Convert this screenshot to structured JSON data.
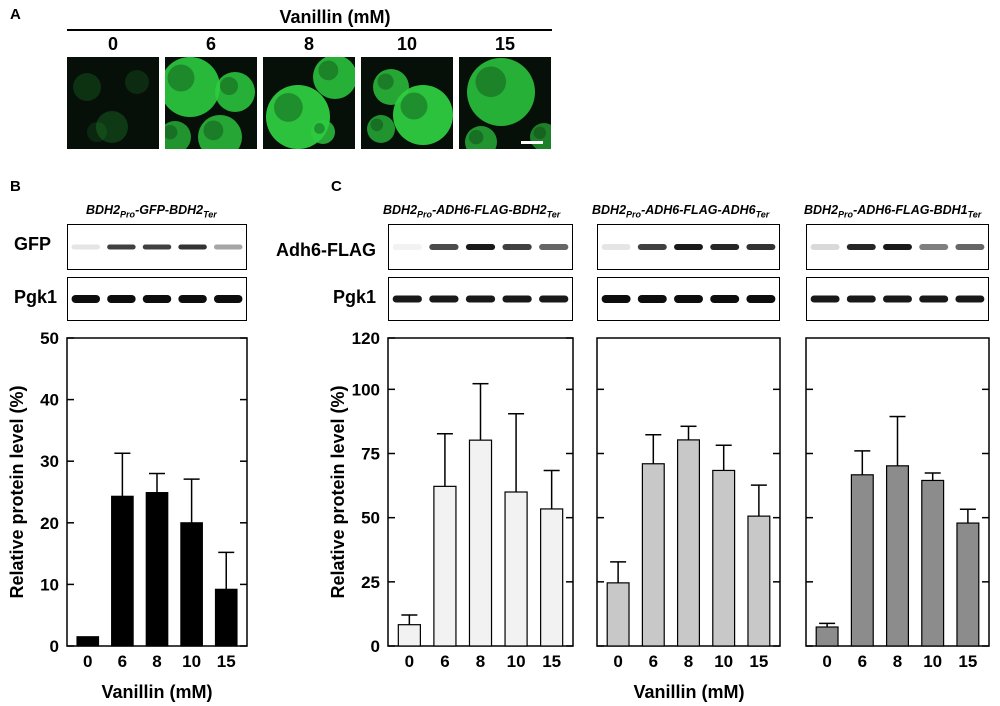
{
  "panel_labels": {
    "a": "A",
    "b": "B",
    "c": "C"
  },
  "panel_a": {
    "header": "Vanillin (mM)",
    "concentrations": [
      "0",
      "6",
      "8",
      "10",
      "15"
    ],
    "fluorescence_color": "#2ecc40"
  },
  "panel_b": {
    "construct": {
      "p1": "BDH2",
      "s1": "Pro",
      "p2": "-GFP-BDH2",
      "s2": "Ter"
    },
    "blot_labels": {
      "top": "GFP",
      "bottom": "Pgk1"
    }
  },
  "panel_c": {
    "constructs": [
      {
        "p1": "BDH2",
        "s1": "Pro",
        "p2": "-ADH6-FLAG-BDH2",
        "s2": "Ter"
      },
      {
        "p1": "BDH2",
        "s1": "Pro",
        "p2": "-ADH6-FLAG-ADH6",
        "s2": "Ter"
      },
      {
        "p1": "BDH2",
        "s1": "Pro",
        "p2": "-ADH6-FLAG-BDH1",
        "s2": "Ter"
      }
    ],
    "blot_labels": {
      "top": "Adh6-FLAG",
      "bottom": "Pgk1"
    }
  },
  "chart_data": [
    {
      "type": "bar",
      "panel": "B",
      "categories": [
        "0",
        "6",
        "8",
        "10",
        "15"
      ],
      "values": [
        1.5,
        24.3,
        24.9,
        20.0,
        9.2
      ],
      "errors": [
        0,
        7.0,
        3.1,
        7.1,
        6.0
      ],
      "ylim": [
        0,
        50
      ],
      "yticks": [
        0,
        10,
        20,
        30,
        40,
        50
      ],
      "ylabel": "Relative protein level (%)",
      "xlabel": "Vanillin (mM)",
      "bar_color": "#000000"
    },
    {
      "type": "bar",
      "panel": "C-BDH2",
      "categories": [
        "0",
        "6",
        "8",
        "10",
        "15"
      ],
      "values": [
        8.3,
        62.2,
        80.2,
        60.0,
        53.4
      ],
      "errors": [
        3.8,
        20.5,
        22.0,
        30.5,
        15.0
      ],
      "ylim": [
        0,
        120
      ],
      "yticks": [
        0,
        25,
        50,
        75,
        100,
        120
      ],
      "ylabel": "Relative protein level (%)",
      "xlabel": "Vanillin (mM)",
      "bar_color": "#f2f2f2"
    },
    {
      "type": "bar",
      "panel": "C-ADH6",
      "categories": [
        "0",
        "6",
        "8",
        "10",
        "15"
      ],
      "values": [
        24.6,
        71.0,
        80.3,
        68.4,
        50.6
      ],
      "errors": [
        8.2,
        11.3,
        5.3,
        9.8,
        12.1
      ],
      "ylim": [
        0,
        120
      ],
      "bar_color": "#c8c8c8"
    },
    {
      "type": "bar",
      "panel": "C-BDH1",
      "categories": [
        "0",
        "6",
        "8",
        "10",
        "15"
      ],
      "values": [
        7.4,
        66.7,
        70.2,
        64.5,
        47.9
      ],
      "errors": [
        1.4,
        9.3,
        19.2,
        2.9,
        5.4
      ],
      "ylim": [
        0,
        120
      ],
      "bar_color": "#8c8c8c"
    }
  ]
}
